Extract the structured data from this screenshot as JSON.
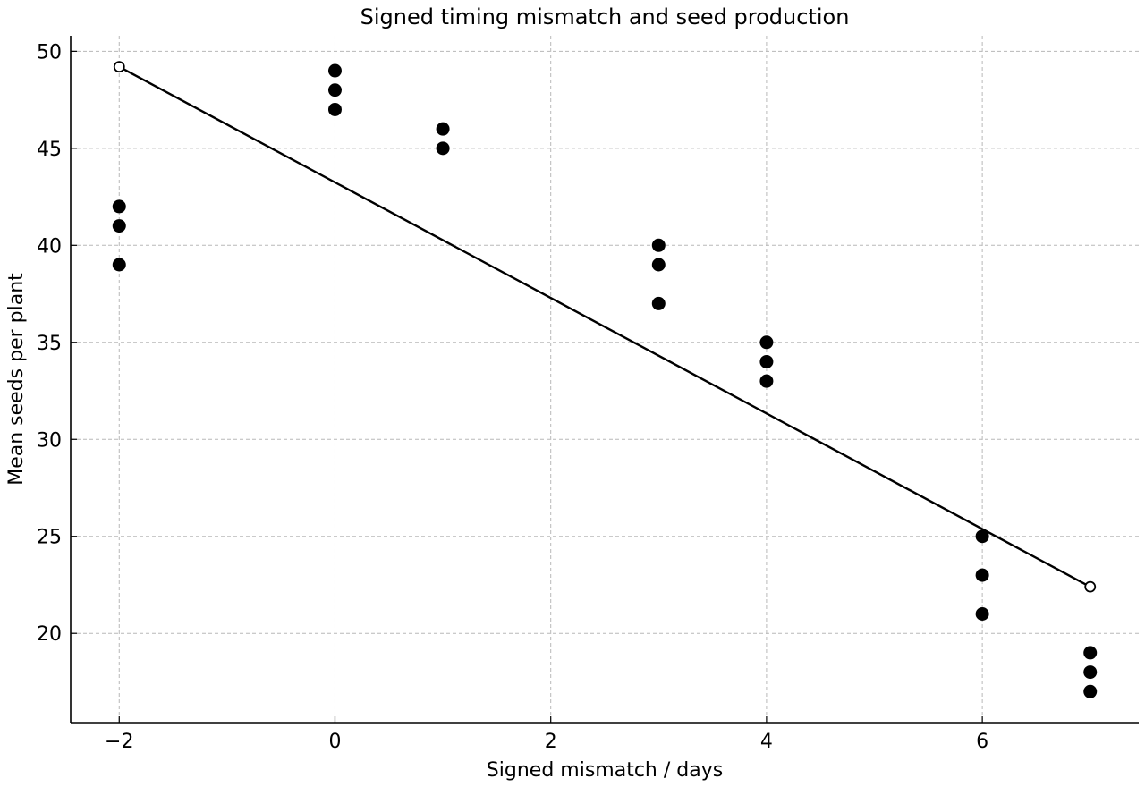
{
  "chart_data": {
    "type": "scatter",
    "title": "Signed timing mismatch and seed production",
    "xlabel": "Signed mismatch / days",
    "ylabel": "Mean seeds per plant",
    "xlim": [
      -2.45,
      7.45
    ],
    "ylim": [
      15.4,
      50.8
    ],
    "x_ticks": [
      -2,
      0,
      2,
      4,
      6
    ],
    "x_tick_labels": [
      "−2",
      "0",
      "2",
      "4",
      "6"
    ],
    "y_ticks": [
      20,
      25,
      30,
      35,
      40,
      45,
      50
    ],
    "y_tick_labels": [
      "20",
      "25",
      "30",
      "35",
      "40",
      "45",
      "50"
    ],
    "grid": true,
    "series": [
      {
        "kind": "points",
        "marker": "filled-circle",
        "color": "#000000",
        "x": [
          -2,
          -2,
          -2,
          0,
          0,
          0,
          1,
          1,
          3,
          3,
          3,
          4,
          4,
          4,
          6,
          6,
          6,
          7,
          7,
          7
        ],
        "y": [
          42,
          41,
          39,
          49,
          48,
          47,
          46,
          45,
          40,
          39,
          37,
          35,
          34,
          33,
          25,
          23,
          21,
          19,
          18,
          17
        ]
      },
      {
        "kind": "fit-line",
        "marker": "open-circle-endpoints",
        "color": "#000000",
        "x": [
          -2,
          7
        ],
        "y": [
          49.2,
          22.4
        ]
      }
    ]
  }
}
